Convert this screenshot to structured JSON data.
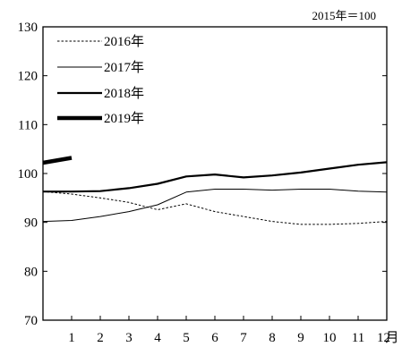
{
  "chart_data": {
    "type": "line",
    "unit_note": "2015年＝100",
    "x": [
      1,
      2,
      3,
      4,
      5,
      6,
      7,
      8,
      9,
      10,
      11,
      12
    ],
    "x_tick_labels": [
      "1",
      "2",
      "3",
      "4",
      "5",
      "6",
      "7",
      "8",
      "9",
      "10",
      "11",
      "12"
    ],
    "x_unit": "月",
    "ylim": [
      70,
      130
    ],
    "y_ticks": [
      70,
      80,
      90,
      100,
      110,
      120,
      130
    ],
    "y_tick_labels": [
      "70",
      "80",
      "90",
      "100",
      "110",
      "120",
      "130"
    ],
    "grid": false,
    "legend_position": "top-left",
    "series": [
      {
        "name": "2016年",
        "style": "dotted",
        "color": "#000000",
        "values": [
          95.8,
          95.0,
          94.1,
          92.6,
          93.8,
          92.2,
          91.2,
          90.2,
          89.6,
          89.6,
          89.8,
          90.2
        ]
      },
      {
        "name": "2017年",
        "style": "thin",
        "color": "#000000",
        "values": [
          90.4,
          91.2,
          92.2,
          93.6,
          96.2,
          96.8,
          96.8,
          96.6,
          96.8,
          96.8,
          96.4,
          96.2
        ]
      },
      {
        "name": "2018年",
        "style": "medium",
        "color": "#000000",
        "values": [
          96.3,
          96.4,
          97.0,
          97.9,
          99.4,
          99.8,
          99.2,
          99.6,
          100.2,
          101.0,
          101.8,
          102.3
        ]
      },
      {
        "name": "2019年",
        "style": "thick",
        "color": "#000000",
        "values": [
          103.2,
          null,
          null,
          null,
          null,
          null,
          null,
          null,
          null,
          null,
          null,
          null
        ]
      }
    ],
    "series_start_value": {
      "2016年": 96.3,
      "2017年": 90.2,
      "2018年": 96.3,
      "2019年": 102.2
    }
  }
}
